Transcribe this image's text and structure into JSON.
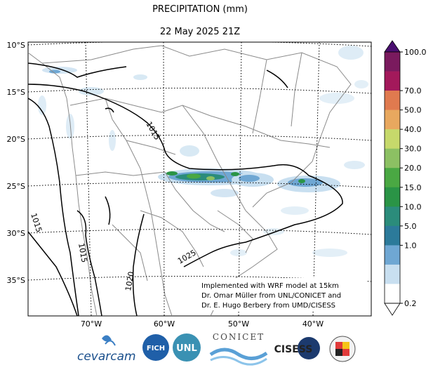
{
  "header": {
    "title": "PRECIPITATION (mm)",
    "datetime": "22 May 2025 21Z"
  },
  "map": {
    "lat_labels": [
      "10°S",
      "15°S",
      "20°S",
      "25°S",
      "30°S",
      "35°S"
    ],
    "lon_labels": [
      "70°W",
      "60°W",
      "50°W",
      "40°W"
    ],
    "isobar_labels": [
      "1015",
      "1015",
      "1015",
      "1020",
      "1025"
    ],
    "credits": [
      "Implemented with WRF model at 15km",
      "Dr. Omar Müller from UNL/CONICET and",
      "Dr. E. Hugo Berbery from UMD/CISESS"
    ]
  },
  "colorbar": {
    "levels": [
      "100.0",
      "70.0",
      "50.0",
      "40.0",
      "30.0",
      "20.0",
      "15.0",
      "10.0",
      "5.0",
      "1.0",
      "0.2"
    ],
    "colors": [
      "#7a1a5e",
      "#a3195b",
      "#e07a4f",
      "#e8a85f",
      "#c6d96b",
      "#8cc063",
      "#4aa843",
      "#2a9446",
      "#2b8c7b",
      "#2c7a9a",
      "#6fa7d3",
      "#c8dff0",
      "#ffffff"
    ]
  },
  "logos": {
    "cevarcam": "cevarcam",
    "fich": "FICH",
    "unl": "UNL",
    "conicet": "CONICET",
    "cisess": "CISESS"
  }
}
